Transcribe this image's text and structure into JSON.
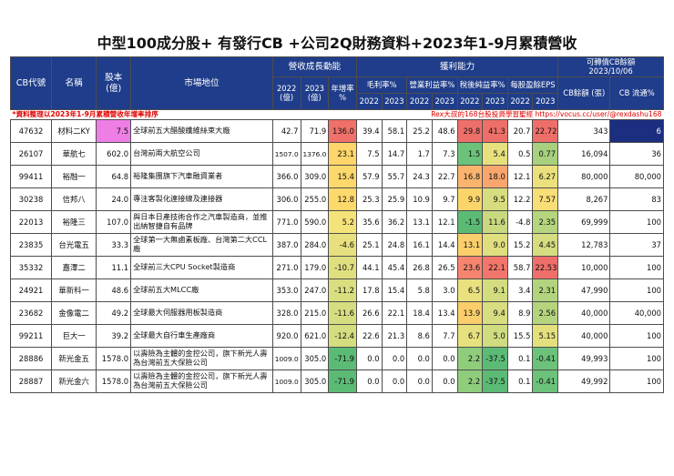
{
  "title": "中型100成分股+ 有發行CB +公司2Q財務資料+2023年1-9月累積營收",
  "headers": {
    "code": "CB代號",
    "name": "名稱",
    "capital": "股本 (億)",
    "market": "市場地位",
    "revenue_group": "營收成長動能",
    "rev2022": "2022 (億)",
    "rev2023": "2023 (億)",
    "growth": "年增率 %",
    "profit_group": "獲利能力",
    "gross": "毛利率%",
    "operating": "營業利益率%",
    "net": "稅後純益率%",
    "eps": "每股盈餘EPS",
    "y2022": "2022",
    "y2023": "2023",
    "cb_group": "可轉債CB餘額",
    "cb_date": "2023/10/06",
    "cb_balance": "CB餘額 (張)",
    "cb_float": "CB 流通%"
  },
  "notes": {
    "left": "*資料整理以2023年1-9月累積營收年增率排序",
    "right": "Rex大叔的168台股投資學習聖經 https://vocus.cc/user/@rexdashu168"
  },
  "rows": [
    {
      "code": "47632",
      "name": "材料二KY",
      "capital": "7.5",
      "market": "全球前五大醋酸纖維絲束大廠",
      "r22": "42.7",
      "r23": "71.9",
      "growth": "136.0",
      "g22": "39.4",
      "g23": "58.1",
      "o22": "25.2",
      "o23": "48.6",
      "n22": "29.8",
      "n23": "41.3",
      "e22": "20.7",
      "e23": "22.72",
      "cb": "343",
      "cbf": "6"
    },
    {
      "code": "26107",
      "name": "華航七",
      "capital": "602.0",
      "market": "台灣前兩大航空公司",
      "r22": "1507.0",
      "r23": "1376.0",
      "growth": "23.1",
      "g22": "7.5",
      "g23": "14.7",
      "o22": "1.7",
      "o23": "7.3",
      "n22": "1.5",
      "n23": "5.4",
      "e22": "0.5",
      "e23": "0.77",
      "cb": "16,094",
      "cbf": "36"
    },
    {
      "code": "99411",
      "name": "裕融一",
      "capital": "64.8",
      "market": "裕隆集團旗下汽車融資業者",
      "r22": "366.0",
      "r23": "309.0",
      "growth": "15.4",
      "g22": "57.9",
      "g23": "55.7",
      "o22": "24.3",
      "o23": "22.7",
      "n22": "16.8",
      "n23": "18.0",
      "e22": "12.1",
      "e23": "6.27",
      "cb": "80,000",
      "cbf": "80,000"
    },
    {
      "code": "30238",
      "name": "信邦八",
      "capital": "24.0",
      "market": "專注客製化連接線及連接器",
      "r22": "306.0",
      "r23": "255.0",
      "growth": "12.8",
      "g22": "25.3",
      "g23": "25.9",
      "o22": "10.9",
      "o23": "9.7",
      "n22": "9.9",
      "n23": "9.5",
      "e22": "12.2",
      "e23": "7.57",
      "cb": "8,267",
      "cbf": "83"
    },
    {
      "code": "22013",
      "name": "裕隆三",
      "capital": "107.0",
      "market": "與日本日產技術合作之汽車製造商，並推出納智捷自有品牌",
      "r22": "771.0",
      "r23": "590.0",
      "growth": "5.2",
      "g22": "35.6",
      "g23": "36.2",
      "o22": "13.1",
      "o23": "12.1",
      "n22": "-1.5",
      "n23": "11.6",
      "e22": "-4.8",
      "e23": "2.35",
      "cb": "69,999",
      "cbf": "100"
    },
    {
      "code": "23835",
      "name": "台光電五",
      "capital": "33.3",
      "market": "全球第一大無鹵素板廠、台灣第二大CCL廠",
      "r22": "387.0",
      "r23": "284.0",
      "growth": "-4.6",
      "g22": "25.1",
      "g23": "24.8",
      "o22": "16.1",
      "o23": "14.4",
      "n22": "13.1",
      "n23": "9.0",
      "e22": "15.2",
      "e23": "4.45",
      "cb": "12,783",
      "cbf": "37"
    },
    {
      "code": "35332",
      "name": "嘉澤二",
      "capital": "11.1",
      "market": "全球前三大CPU Socket製造商",
      "r22": "271.0",
      "r23": "179.0",
      "growth": "-10.7",
      "g22": "44.1",
      "g23": "45.4",
      "o22": "26.8",
      "o23": "26.5",
      "n22": "23.6",
      "n23": "22.1",
      "e22": "58.7",
      "e23": "22.53",
      "cb": "10,000",
      "cbf": "100"
    },
    {
      "code": "24921",
      "name": "華新科一",
      "capital": "48.6",
      "market": "全球前五大MLCC廠",
      "r22": "353.0",
      "r23": "247.0",
      "growth": "-11.2",
      "g22": "17.8",
      "g23": "15.4",
      "o22": "5.8",
      "o23": "3.0",
      "n22": "6.5",
      "n23": "9.1",
      "e22": "3.4",
      "e23": "2.31",
      "cb": "47,990",
      "cbf": "100"
    },
    {
      "code": "23682",
      "name": "金像電二",
      "capital": "49.2",
      "market": "全球最大伺服器用板製造商",
      "r22": "328.0",
      "r23": "215.0",
      "growth": "-11.6",
      "g22": "26.6",
      "g23": "22.1",
      "o22": "18.4",
      "o23": "13.4",
      "n22": "13.9",
      "n23": "9.4",
      "e22": "8.9",
      "e23": "2.56",
      "cb": "40,000",
      "cbf": "40,000"
    },
    {
      "code": "99211",
      "name": "巨大一",
      "capital": "39.2",
      "market": "全球最大自行車生產廠商",
      "r22": "920.0",
      "r23": "621.0",
      "growth": "-12.4",
      "g22": "22.6",
      "g23": "21.3",
      "o22": "8.6",
      "o23": "7.7",
      "n22": "6.7",
      "n23": "5.0",
      "e22": "15.5",
      "e23": "5.15",
      "cb": "40,000",
      "cbf": "100"
    },
    {
      "code": "28886",
      "name": "新光金五",
      "capital": "1578.0",
      "market": "以壽險為主體的金控公司，旗下新光人壽為台灣前五大保險公司",
      "r22": "1009.0",
      "r23": "305.0",
      "growth": "-71.9",
      "g22": "0.0",
      "g23": "0.0",
      "o22": "0.0",
      "o23": "0.0",
      "n22": "2.2",
      "n23": "-37.5",
      "e22": "0.1",
      "e23": "-0.41",
      "cb": "49,993",
      "cbf": "100"
    },
    {
      "code": "28887",
      "name": "新光金六",
      "capital": "1578.0",
      "market": "以壽險為主體的金控公司，旗下新光人壽為台灣前五大保險公司",
      "r22": "1009.0",
      "r23": "305.0",
      "growth": "-71.9",
      "g22": "0.0",
      "g23": "0.0",
      "o22": "0.0",
      "o23": "0.0",
      "n22": "2.2",
      "n23": "-37.5",
      "e22": "0.1",
      "e23": "-0.41",
      "cb": "49,992",
      "cbf": "100"
    }
  ],
  "colors": {
    "growth": [
      "#f0706a",
      "#fdd56a",
      "#fdd86c",
      "#fdd96c",
      "#f4e37a",
      "#e8e07e",
      "#dfdf80",
      "#d9de80",
      "#d6dd80",
      "#d4dd80",
      "#5bbb75",
      "#5bbb75"
    ],
    "n22": [
      "#ee6f69",
      "#6cc27a",
      "#f9b46e",
      "#fbd56a",
      "#5bbb75",
      "#fbcf6b",
      "#f6846f",
      "#e9e17e",
      "#fbce6b",
      "#e6e07e",
      "#8fcd7c",
      "#8fcd7c"
    ],
    "n23": [
      "#ee6f69",
      "#e6e07e",
      "#f8a66e",
      "#d7dd7f",
      "#c8d980",
      "#dfdf80",
      "#f2766b",
      "#d3dd80",
      "#d7dd80",
      "#cfdc80",
      "#5bbb75",
      "#5bbb75"
    ],
    "e23": [
      "#ee6f69",
      "#a8d07e",
      "#eae17e",
      "#f8de76",
      "#b5d57e",
      "#d6dd80",
      "#ee6f69",
      "#b2d47e",
      "#b4d47e",
      "#e4e07e",
      "#6cc27a",
      "#6cc27a"
    ]
  }
}
